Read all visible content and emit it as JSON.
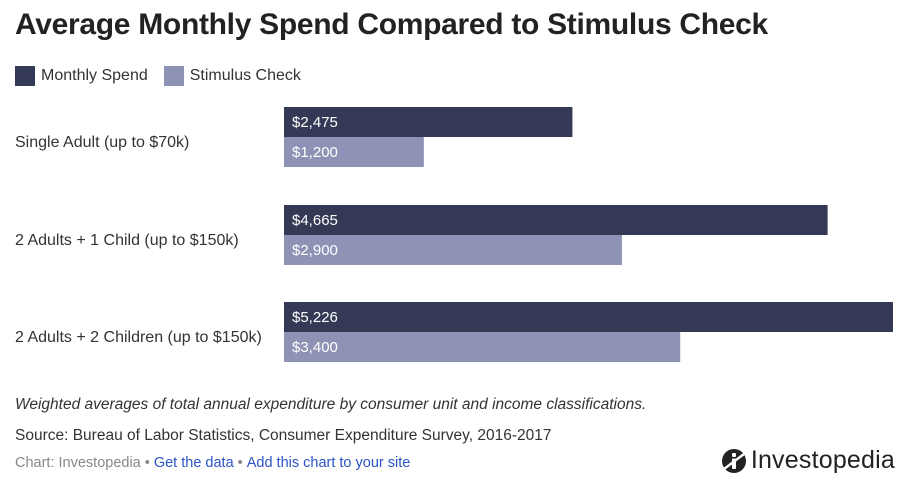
{
  "chart_data": {
    "type": "bar",
    "orientation": "horizontal",
    "title": "Average Monthly Spend Compared to Stimulus Check",
    "categories": [
      "Single Adult (up to $70k)",
      "2 Adults + 1 Child (up to $150k)",
      "2 Adults + 2 Children (up to $150k)"
    ],
    "series": [
      {
        "name": "Monthly Spend",
        "color": "#343a56",
        "values": [
          2475,
          4665,
          5226
        ],
        "labels": [
          "$2,475",
          "$4,665",
          "$5,226"
        ]
      },
      {
        "name": "Stimulus Check",
        "color": "#8e93b6",
        "values": [
          1200,
          2900,
          3400
        ],
        "labels": [
          "$1,200",
          "$2,900",
          "$3,400"
        ]
      }
    ],
    "xlim": [
      0,
      5226
    ],
    "legend": "top-left",
    "grid": false
  },
  "note": "Weighted averages of total annual expenditure by consumer unit and income classifications.",
  "source": "Source: Bureau of Labor Statistics, Consumer Expenditure Survey, 2016-2017",
  "footer": {
    "credit": "Chart: Investopedia",
    "get_data": "Get the data",
    "add_chart": "Add this chart to your site",
    "separator": "•"
  },
  "logo": {
    "text": "Investopedia",
    "icon": "investopedia-logo-icon"
  }
}
